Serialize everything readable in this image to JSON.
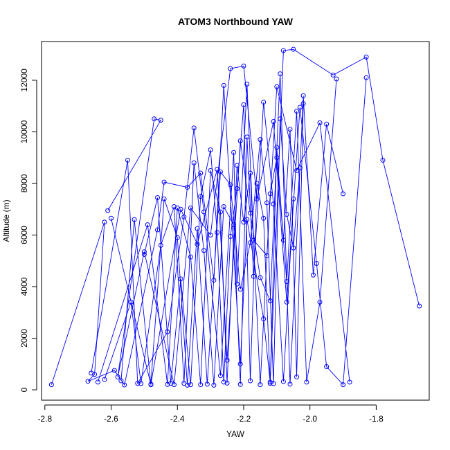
{
  "chart_data": {
    "type": "line",
    "title": "ATOM3 Northbound YAW",
    "xlabel": "YAW",
    "ylabel": "Altitude (m)",
    "xlim": [
      -2.81,
      -1.64
    ],
    "ylim": [
      -400,
      13500
    ],
    "x_ticks": [
      -2.8,
      -2.6,
      -2.4,
      -2.2,
      -2.0,
      -1.8
    ],
    "x_tick_labels": [
      "-2.8",
      "-2.6",
      "-2.4",
      "-2.2",
      "-2.0",
      "-1.8"
    ],
    "y_ticks": [
      0,
      2000,
      4000,
      6000,
      8000,
      10000,
      12000
    ],
    "y_tick_labels": [
      "0",
      "2000",
      "4000",
      "6000",
      "8000",
      "10000",
      "12000"
    ],
    "grid": false,
    "markers": "open-circle",
    "color": "#0000ff",
    "series": [
      {
        "x": [
          -2.78,
          -2.62,
          -2.65,
          -2.67,
          -2.59,
          -2.56,
          -2.46,
          -2.44,
          -2.37,
          -2.33,
          -2.29,
          -2.26,
          -2.21,
          -2.19,
          -2.14,
          -2.12,
          -2.08,
          -2.05,
          -1.93,
          -1.83,
          -1.78,
          -1.67
        ],
        "y": [
          200,
          6500,
          600,
          330,
          750,
          190,
          6200,
          8050,
          7850,
          8400,
          4250,
          11800,
          1000,
          6600,
          2750,
          300,
          13150,
          13200,
          12200,
          12900,
          8900,
          3250
        ]
      },
      {
        "x": [
          -2.61,
          -2.45,
          -2.47,
          -2.58,
          -2.5,
          -2.41,
          -2.36,
          -2.3,
          -2.24,
          -2.2,
          -2.16,
          -2.11,
          -2.07,
          -2.03,
          -1.98,
          -1.95,
          -1.9,
          -1.83
        ],
        "y": [
          6950,
          10450,
          10500,
          500,
          5350,
          200,
          7050,
          6000,
          12450,
          12550,
          7400,
          10400,
          3400,
          10950,
          4900,
          900,
          200,
          12100
        ]
      },
      {
        "x": [
          -2.6,
          -2.48,
          -2.39,
          -2.34,
          -2.28,
          -2.25,
          -2.21,
          -2.18,
          -2.15,
          -2.12,
          -2.09,
          -2.06,
          -2.02,
          -1.99,
          -1.95,
          -1.9
        ],
        "y": [
          6650,
          200,
          7000,
          5650,
          8550,
          1150,
          9650,
          6850,
          4350,
          3450,
          12250,
          220,
          11400,
          4450,
          10300,
          7600
        ]
      },
      {
        "x": [
          -2.66,
          -2.55,
          -2.52,
          -2.43,
          -2.38,
          -2.35,
          -2.32,
          -2.27,
          -2.23,
          -2.22,
          -2.19,
          -2.17,
          -2.13,
          -2.1,
          -2.04,
          -1.97,
          -1.88
        ],
        "y": [
          650,
          8900,
          250,
          2250,
          6700,
          10150,
          6900,
          550,
          9200,
          4100,
          11850,
          5800,
          5200,
          11750,
          8500,
          10350,
          300
        ]
      },
      {
        "x": [
          -2.5,
          -2.46,
          -2.42,
          -2.39,
          -2.36,
          -2.33,
          -2.3,
          -2.28,
          -2.26,
          -2.24,
          -2.22,
          -2.2,
          -2.18,
          -2.16,
          -2.14,
          -2.12,
          -2.1,
          -2.08,
          -2.06,
          -2.04,
          -2.02
        ],
        "y": [
          5250,
          7450,
          250,
          4300,
          200,
          7500,
          9300,
          6100,
          300,
          5950,
          7800,
          11050,
          350,
          8000,
          6650,
          250,
          9400,
          5800,
          10100,
          500,
          11100
        ]
      },
      {
        "x": [
          -2.57,
          -2.53,
          -2.48,
          -2.44,
          -2.4,
          -2.37,
          -2.34,
          -2.31,
          -2.27,
          -2.24,
          -2.21,
          -2.18,
          -2.15,
          -2.13,
          -2.11,
          -2.09,
          -2.07,
          -2.05,
          -2.03
        ],
        "y": [
          350,
          6600,
          220,
          7400,
          5900,
          180,
          6250,
          220,
          8450,
          7950,
          3900,
          5700,
          9700,
          7250,
          240,
          10500,
          6800,
          5500,
          8600
        ]
      },
      {
        "x": [
          -2.62,
          -2.54,
          -2.51,
          -2.45,
          -2.41,
          -2.38,
          -2.35,
          -2.32,
          -2.29,
          -2.26,
          -2.23,
          -2.21,
          -2.19,
          -2.17,
          -2.14,
          -2.11,
          -2.08,
          -2.05
        ],
        "y": [
          400,
          3400,
          240,
          5600,
          7100,
          250,
          8800,
          5400,
          180,
          7100,
          6400,
          210,
          9800,
          4400,
          11150,
          7200,
          320,
          7400
        ]
      },
      {
        "x": [
          -2.64,
          -2.49,
          -2.43,
          -2.4,
          -2.36,
          -2.33,
          -2.3,
          -2.27,
          -2.25,
          -2.22,
          -2.2,
          -2.18,
          -2.15,
          -2.12,
          -2.1,
          -2.07,
          -2.04,
          -2.01,
          -1.97,
          -1.92
        ],
        "y": [
          300,
          6400,
          210,
          7050,
          5150,
          200,
          8500,
          6900,
          260,
          8700,
          6500,
          8400,
          200,
          7600,
          9000,
          4200,
          10800,
          300,
          3400,
          12050
        ]
      }
    ]
  }
}
